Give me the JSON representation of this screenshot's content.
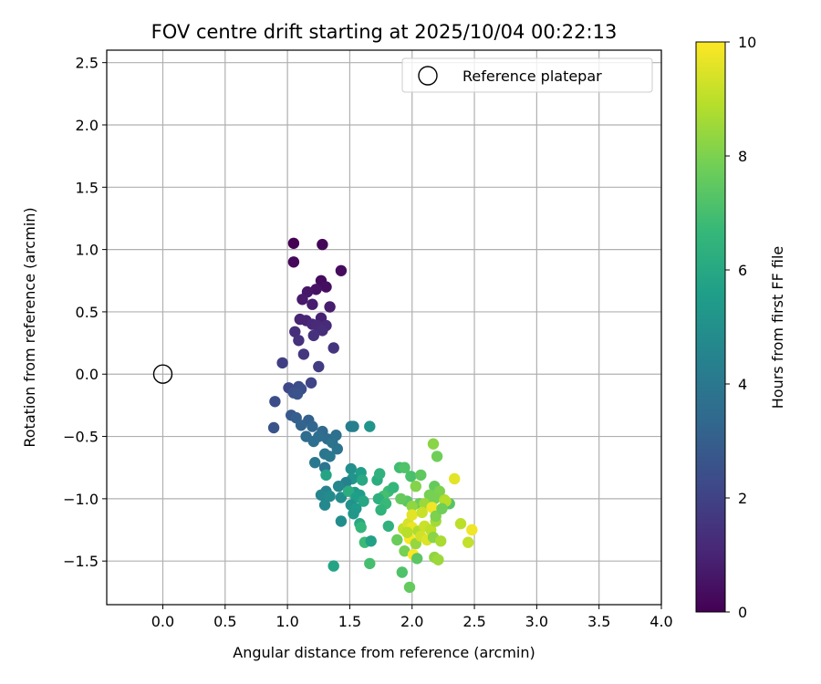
{
  "chart_data": {
    "type": "scatter",
    "title": "FOV centre drift starting at 2025/10/04 00:22:13",
    "xlabel": "Angular distance from reference (arcmin)",
    "ylabel": "Rotation from reference (arcmin)",
    "xlim": [
      -0.45,
      4.0
    ],
    "ylim": [
      -1.85,
      2.6
    ],
    "xticks": [
      "0.0",
      "0.5",
      "1.0",
      "1.5",
      "2.0",
      "2.5",
      "3.0",
      "3.5",
      "4.0"
    ],
    "yticks": [
      "−1.5",
      "−1.0",
      "−0.5",
      "0.0",
      "0.5",
      "1.0",
      "1.5",
      "2.0",
      "2.5"
    ],
    "grid": true,
    "legend": {
      "position": "top-right",
      "label": "Reference platepar"
    },
    "reference_point": {
      "x": 0.0,
      "y": 0.0
    },
    "colorbar": {
      "label": "Hours from first FF file",
      "range": [
        0,
        10
      ],
      "ticks": [
        "0",
        "2",
        "4",
        "6",
        "8",
        "10"
      ],
      "colormap": "viridis",
      "colors": [
        "#440154",
        "#482878",
        "#3e4989",
        "#31688e",
        "#26828e",
        "#1f9e89",
        "#35b779",
        "#6ece58",
        "#b5de2b",
        "#fde725"
      ]
    },
    "series": [
      {
        "points": [
          [
            1.05,
            1.05,
            0.0
          ],
          [
            1.28,
            1.04,
            0.1
          ],
          [
            1.05,
            0.9,
            0.2
          ],
          [
            1.43,
            0.83,
            0.3
          ],
          [
            1.27,
            0.75,
            0.3
          ],
          [
            1.31,
            0.7,
            0.4
          ],
          [
            1.23,
            0.68,
            0.5
          ],
          [
            1.16,
            0.66,
            0.6
          ],
          [
            1.12,
            0.6,
            0.7
          ],
          [
            1.2,
            0.56,
            0.8
          ],
          [
            1.34,
            0.54,
            0.8
          ],
          [
            1.27,
            0.45,
            0.9
          ],
          [
            1.1,
            0.44,
            1.0
          ],
          [
            1.15,
            0.43,
            1.0
          ],
          [
            1.2,
            0.4,
            1.1
          ],
          [
            1.24,
            0.39,
            1.2
          ],
          [
            1.31,
            0.39,
            1.2
          ],
          [
            1.06,
            0.34,
            1.3
          ],
          [
            1.28,
            0.35,
            1.3
          ],
          [
            1.21,
            0.31,
            1.4
          ],
          [
            1.09,
            0.27,
            1.4
          ],
          [
            1.37,
            0.21,
            1.5
          ],
          [
            1.13,
            0.16,
            1.6
          ],
          [
            0.96,
            0.09,
            1.9
          ],
          [
            1.25,
            0.06,
            1.8
          ],
          [
            1.19,
            -0.07,
            2.1
          ],
          [
            1.01,
            -0.11,
            2.2
          ],
          [
            1.09,
            -0.1,
            2.3
          ],
          [
            1.11,
            -0.12,
            2.4
          ],
          [
            1.05,
            -0.15,
            2.5
          ],
          [
            1.08,
            -0.16,
            2.6
          ],
          [
            0.9,
            -0.22,
            2.4
          ],
          [
            1.03,
            -0.33,
            2.8
          ],
          [
            0.89,
            -0.43,
            2.6
          ],
          [
            1.07,
            -0.35,
            3.0
          ],
          [
            1.17,
            -0.37,
            3.1
          ],
          [
            1.11,
            -0.41,
            3.2
          ],
          [
            1.2,
            -0.42,
            3.3
          ],
          [
            1.28,
            -0.46,
            3.4
          ],
          [
            1.15,
            -0.5,
            3.5
          ],
          [
            1.32,
            -0.52,
            3.5
          ],
          [
            1.21,
            -0.54,
            3.6
          ],
          [
            1.25,
            -0.5,
            3.6
          ],
          [
            1.39,
            -0.49,
            3.7
          ],
          [
            1.36,
            -0.55,
            3.8
          ],
          [
            1.4,
            -0.6,
            3.8
          ],
          [
            1.3,
            -0.64,
            3.9
          ],
          [
            1.34,
            -0.66,
            4.0
          ],
          [
            1.22,
            -0.71,
            4.0
          ],
          [
            1.3,
            -0.75,
            3.9
          ],
          [
            1.51,
            -0.42,
            4.2
          ],
          [
            1.53,
            -0.42,
            4.3
          ],
          [
            1.66,
            -0.42,
            5.2
          ],
          [
            1.51,
            -0.76,
            5.0
          ],
          [
            1.59,
            -0.79,
            5.6
          ],
          [
            1.31,
            -0.81,
            5.8
          ],
          [
            1.52,
            -0.84,
            5.2
          ],
          [
            1.6,
            -0.85,
            6.0
          ],
          [
            1.47,
            -0.87,
            4.4
          ],
          [
            1.41,
            -0.9,
            4.6
          ],
          [
            1.31,
            -0.94,
            4.5
          ],
          [
            1.27,
            -0.97,
            4.6
          ],
          [
            1.34,
            -0.98,
            4.8
          ],
          [
            1.43,
            -0.99,
            4.9
          ],
          [
            1.54,
            -0.95,
            5.3
          ],
          [
            1.49,
            -0.94,
            6.2
          ],
          [
            1.58,
            -0.97,
            5.5
          ],
          [
            1.55,
            -0.99,
            5.6
          ],
          [
            1.61,
            -1.02,
            5.9
          ],
          [
            1.3,
            -1.05,
            4.7
          ],
          [
            1.51,
            -1.05,
            5.1
          ],
          [
            1.55,
            -1.08,
            5.4
          ],
          [
            1.53,
            -1.12,
            5.3
          ],
          [
            1.43,
            -1.18,
            4.9
          ],
          [
            1.58,
            -1.2,
            6.0
          ],
          [
            1.59,
            -1.23,
            6.6
          ],
          [
            1.62,
            -1.35,
            6.8
          ],
          [
            1.67,
            -1.34,
            5.7
          ],
          [
            1.66,
            -1.52,
            7.0
          ],
          [
            1.37,
            -1.54,
            5.8
          ],
          [
            1.72,
            -0.85,
            6.2
          ],
          [
            1.74,
            -0.8,
            6.4
          ],
          [
            1.81,
            -0.94,
            6.8
          ],
          [
            1.77,
            -0.98,
            7.0
          ],
          [
            1.85,
            -0.91,
            6.6
          ],
          [
            1.73,
            -1.0,
            6.3
          ],
          [
            1.79,
            -1.04,
            6.7
          ],
          [
            1.75,
            -1.09,
            6.5
          ],
          [
            1.81,
            -1.22,
            6.4
          ],
          [
            1.9,
            -0.75,
            6.9
          ],
          [
            1.94,
            -0.75,
            7.2
          ],
          [
            1.99,
            -0.82,
            7.1
          ],
          [
            2.03,
            -0.9,
            8.1
          ],
          [
            2.07,
            -0.81,
            7.5
          ],
          [
            2.17,
            -0.56,
            8.2
          ],
          [
            2.2,
            -0.66,
            7.8
          ],
          [
            2.18,
            -0.9,
            7.6
          ],
          [
            2.22,
            -0.94,
            8.0
          ],
          [
            2.14,
            -0.97,
            7.9
          ],
          [
            2.06,
            -1.04,
            7.7
          ],
          [
            1.96,
            -1.02,
            7.4
          ],
          [
            1.91,
            -1.0,
            7.6
          ],
          [
            2.0,
            -1.06,
            8.3
          ],
          [
            2.1,
            -1.04,
            8.5
          ],
          [
            2.18,
            -1.0,
            7.9
          ],
          [
            2.26,
            -1.01,
            8.7
          ],
          [
            2.3,
            -1.04,
            7.3
          ],
          [
            2.27,
            -1.02,
            8.9
          ],
          [
            2.34,
            -0.84,
            9.6
          ],
          [
            1.93,
            -1.24,
            9.1
          ],
          [
            1.97,
            -1.2,
            9.4
          ],
          [
            2.0,
            -1.23,
            9.7
          ],
          [
            2.05,
            -1.26,
            8.8
          ],
          [
            2.1,
            -1.22,
            9.2
          ],
          [
            2.15,
            -1.25,
            9.0
          ],
          [
            2.19,
            -1.18,
            8.6
          ],
          [
            1.88,
            -1.33,
            7.7
          ],
          [
            1.98,
            -1.32,
            9.9
          ],
          [
            2.03,
            -1.36,
            8.4
          ],
          [
            2.07,
            -1.3,
            9.3
          ],
          [
            2.12,
            -1.33,
            9.5
          ],
          [
            2.17,
            -1.31,
            8.2
          ],
          [
            2.23,
            -1.34,
            8.7
          ],
          [
            2.39,
            -1.2,
            9.0
          ],
          [
            2.45,
            -1.35,
            9.1
          ],
          [
            2.48,
            -1.25,
            9.8
          ],
          [
            1.94,
            -1.42,
            7.9
          ],
          [
            2.01,
            -1.45,
            10.0
          ],
          [
            2.04,
            -1.48,
            7.4
          ],
          [
            2.18,
            -1.47,
            8.3
          ],
          [
            2.21,
            -1.49,
            8.5
          ],
          [
            1.92,
            -1.59,
            7.2
          ],
          [
            1.98,
            -1.71,
            7.6
          ],
          [
            2.0,
            -1.13,
            9.6
          ],
          [
            2.08,
            -1.11,
            9.2
          ],
          [
            2.16,
            -1.07,
            9.8
          ],
          [
            2.19,
            -1.14,
            8.0
          ],
          [
            2.24,
            -1.08,
            7.8
          ],
          [
            1.96,
            -1.27,
            8.9
          ]
        ]
      }
    ]
  }
}
